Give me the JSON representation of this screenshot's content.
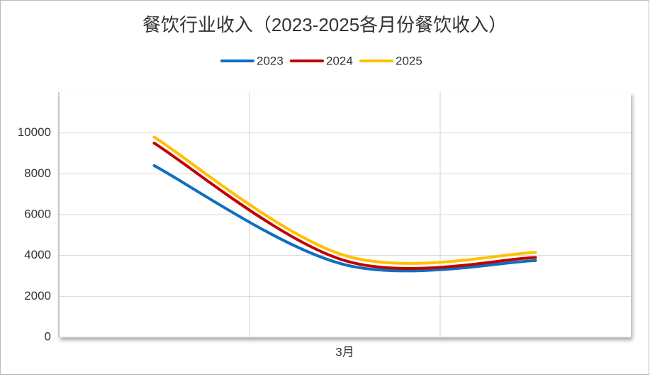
{
  "chart_data": {
    "type": "line",
    "title": "餐饮行业收入（2023-2025各月份餐饮收入）",
    "categories": [
      null,
      "3月",
      null
    ],
    "series": [
      {
        "name": "2023",
        "color": "#0e6fbf",
        "values": [
          8400,
          3550,
          3750
        ]
      },
      {
        "name": "2024",
        "color": "#c00000",
        "values": [
          9500,
          3750,
          3900
        ]
      },
      {
        "name": "2025",
        "color": "#ffc000",
        "values": [
          9800,
          4000,
          4150
        ]
      }
    ],
    "ylim": [
      0,
      12000
    ],
    "yticks": [
      0,
      2000,
      4000,
      6000,
      8000,
      10000
    ],
    "grid": true,
    "legend": "top",
    "smooth": true
  }
}
